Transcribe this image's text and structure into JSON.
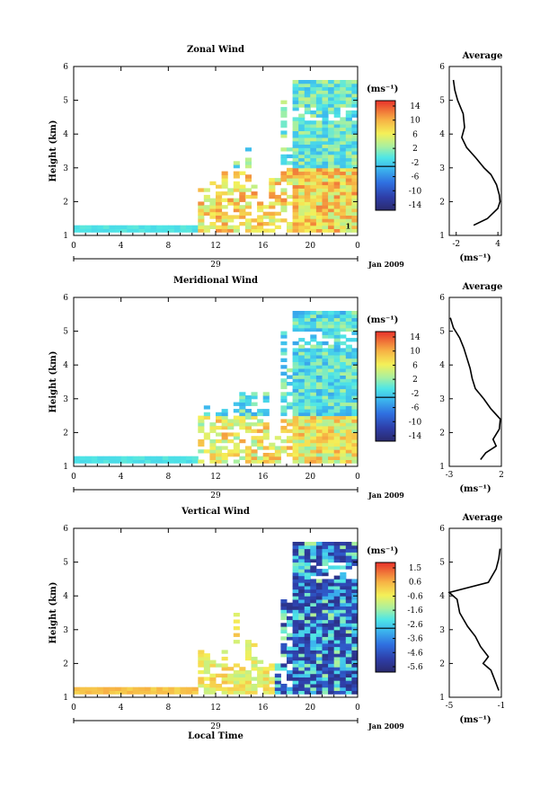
{
  "figure": {
    "xlabel": "Local Time",
    "date_label": "Jan 2009",
    "day_label": "29",
    "unit_label": "(ms⁻¹)"
  },
  "chart_data": [
    {
      "type": "heatmap",
      "title": "Zonal Wind",
      "ylabel": "Height (km)",
      "xlabel": "Local Time",
      "x_ticks": [
        "0",
        "4",
        "8",
        "12",
        "16",
        "20",
        "0"
      ],
      "y_ticks": [
        "1",
        "2",
        "3",
        "4",
        "5",
        "6"
      ],
      "xlim": [
        0,
        24
      ],
      "ylim": [
        1,
        6
      ],
      "colorbar": {
        "unit": "(ms⁻¹)",
        "ticks": [
          "14",
          "10",
          "6",
          "2",
          "-2",
          "-6",
          "-10",
          "-14"
        ],
        "range": [
          -16,
          16
        ]
      },
      "annotations": [
        "1"
      ],
      "profile": {
        "title": "Average",
        "xlabel": "(ms⁻¹)",
        "x_ticks": [
          "-2",
          "4"
        ],
        "xlim": [
          -3,
          4.5
        ],
        "y_ticks": [
          "1",
          "2",
          "3",
          "4",
          "5",
          "6"
        ],
        "heights": [
          1.3,
          1.5,
          1.8,
          2.0,
          2.2,
          2.5,
          2.8,
          3.0,
          3.3,
          3.6,
          3.9,
          4.2,
          4.6,
          5.0,
          5.3,
          5.6
        ],
        "values": [
          0.5,
          2.5,
          4.0,
          4.3,
          4.2,
          3.8,
          3.0,
          2.0,
          0.8,
          -0.5,
          -1.2,
          -0.8,
          -1.0,
          -1.8,
          -2.2,
          -2.4
        ]
      }
    },
    {
      "type": "heatmap",
      "title": "Meridional Wind",
      "ylabel": "Height (km)",
      "xlabel": "Local Time",
      "x_ticks": [
        "0",
        "4",
        "8",
        "12",
        "16",
        "20",
        "0"
      ],
      "y_ticks": [
        "1",
        "2",
        "3",
        "4",
        "5",
        "6"
      ],
      "xlim": [
        0,
        24
      ],
      "ylim": [
        1,
        6
      ],
      "colorbar": {
        "unit": "(ms⁻¹)",
        "ticks": [
          "14",
          "10",
          "6",
          "2",
          "-2",
          "-6",
          "-10",
          "-14"
        ],
        "range": [
          -16,
          16
        ]
      },
      "profile": {
        "title": "Average",
        "xlabel": "(ms⁻¹)",
        "x_ticks": [
          "-3",
          "2"
        ],
        "xlim": [
          -3,
          2
        ],
        "y_ticks": [
          "1",
          "2",
          "3",
          "4",
          "5",
          "6"
        ],
        "heights": [
          1.2,
          1.4,
          1.6,
          1.8,
          2.1,
          2.4,
          2.7,
          3.0,
          3.3,
          3.6,
          3.9,
          4.2,
          4.5,
          4.8,
          5.1,
          5.4
        ],
        "values": [
          0.0,
          0.5,
          1.5,
          1.2,
          1.8,
          1.9,
          1.0,
          0.3,
          -0.5,
          -0.8,
          -1.0,
          -1.3,
          -1.6,
          -2.0,
          -2.6,
          -2.9
        ]
      }
    },
    {
      "type": "heatmap",
      "title": "Vertical Wind",
      "ylabel": "Height (km)",
      "xlabel": "Local Time",
      "x_ticks": [
        "0",
        "4",
        "8",
        "12",
        "16",
        "20",
        "0"
      ],
      "y_ticks": [
        "1",
        "2",
        "3",
        "4",
        "5",
        "6"
      ],
      "xlim": [
        0,
        24
      ],
      "ylim": [
        1,
        6
      ],
      "colorbar": {
        "unit": "(ms⁻¹)",
        "ticks": [
          "1.5",
          "0.6",
          "-0.6",
          "-1.6",
          "-2.6",
          "-3.6",
          "-4.6",
          "-5.6"
        ],
        "range": [
          -6,
          2
        ]
      },
      "profile": {
        "title": "Average",
        "xlabel": "(ms⁻¹)",
        "x_ticks": [
          "-5",
          "-1"
        ],
        "xlim": [
          -5,
          -1
        ],
        "y_ticks": [
          "1",
          "2",
          "3",
          "4",
          "5",
          "6"
        ],
        "heights": [
          1.2,
          1.5,
          1.8,
          2.0,
          2.2,
          2.5,
          2.8,
          3.1,
          3.5,
          3.9,
          4.1,
          4.4,
          4.8,
          5.1,
          5.4
        ],
        "values": [
          -1.2,
          -1.5,
          -1.8,
          -2.4,
          -2.0,
          -2.6,
          -3.0,
          -3.6,
          -4.2,
          -4.4,
          -5.0,
          -2.0,
          -1.4,
          -1.2,
          -1.1
        ]
      }
    }
  ]
}
